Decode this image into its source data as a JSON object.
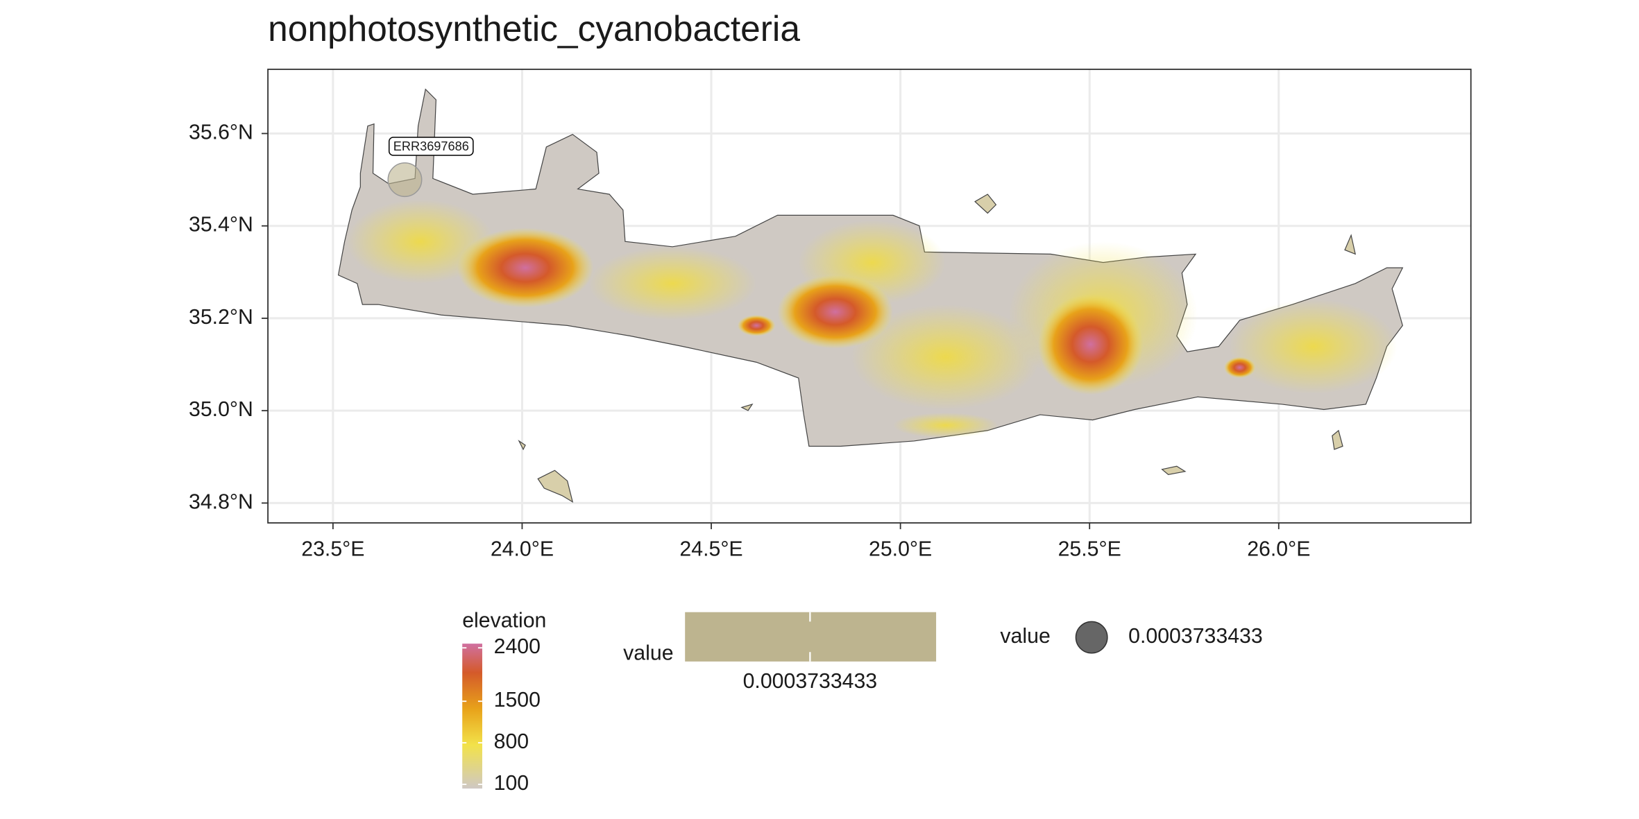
{
  "chart_data": {
    "type": "map",
    "title": "nonphotosynthetic_cyanobacteria",
    "xlim": [
      23.328,
      26.508
    ],
    "ylim": [
      34.757,
      35.739
    ],
    "xticks": [
      {
        "value": 23.5,
        "label": "23.5°E"
      },
      {
        "value": 24.0,
        "label": "24.0°E"
      },
      {
        "value": 24.5,
        "label": "24.5°E"
      },
      {
        "value": 25.0,
        "label": "25.0°E"
      },
      {
        "value": 25.5,
        "label": "25.5°E"
      },
      {
        "value": 26.0,
        "label": "26.0°E"
      }
    ],
    "yticks": [
      {
        "value": 34.8,
        "label": "34.8°N"
      },
      {
        "value": 35.0,
        "label": "35.0°N"
      },
      {
        "value": 35.2,
        "label": "35.2°N"
      },
      {
        "value": 35.4,
        "label": "35.4°N"
      },
      {
        "value": 35.6,
        "label": "35.6°N"
      }
    ],
    "grid": true,
    "points": [
      {
        "label": "ERR3697686",
        "lon": 23.69,
        "lat": 35.5,
        "value": 0.0003733433,
        "color": "#bdb48f"
      }
    ],
    "elevation_legend": {
      "title": "elevation",
      "lim": [
        100,
        2400
      ],
      "ticks": [
        100,
        800,
        1500,
        2400
      ]
    },
    "fill_legend": {
      "title": "value",
      "label": 0.0003733433,
      "color": "#bdb48f"
    },
    "size_legend": {
      "title": "value",
      "label": 0.0003733433,
      "color": "#666666"
    }
  }
}
